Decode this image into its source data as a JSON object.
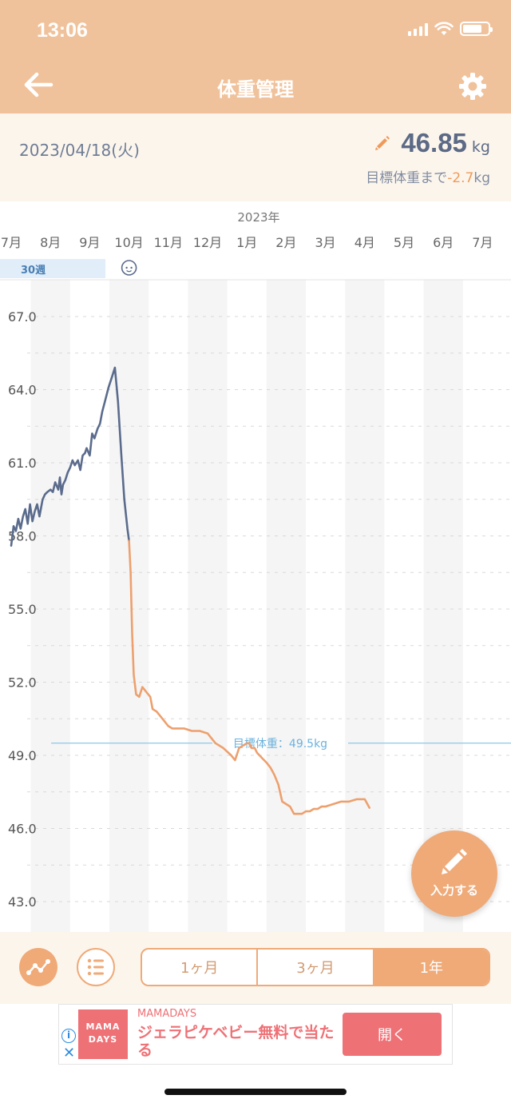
{
  "status_bar": {
    "time": "13:06"
  },
  "header": {
    "title": "体重管理"
  },
  "summary": {
    "date": "2023/04/18(火)",
    "weight": "46.85",
    "weight_unit": "kg",
    "goal_prefix": "目標体重まで",
    "goal_diff": "-2.7",
    "goal_unit": "kg"
  },
  "chart_data": {
    "type": "line",
    "year_label": "2023年",
    "months": [
      "7月",
      "8月",
      "9月",
      "10月",
      "11月",
      "12月",
      "1月",
      "2月",
      "3月",
      "4月",
      "5月",
      "6月",
      "7月"
    ],
    "pregnancy_week_label": "30週",
    "y_ticks": [
      "67.0",
      "64.0",
      "61.0",
      "58.0",
      "55.0",
      "52.0",
      "49.0",
      "46.0",
      "43.0"
    ],
    "ylim": [
      42,
      68
    ],
    "target_line": {
      "label": "目標体重：49.5kg",
      "value": 49.5
    },
    "x_unit": "month index (0 = Jul 2022)",
    "series": [
      {
        "phase": "pregnancy",
        "color": "#5a6b8c",
        "x": [
          0.0,
          0.06,
          0.12,
          0.18,
          0.24,
          0.3,
          0.36,
          0.42,
          0.48,
          0.54,
          0.6,
          0.66,
          0.72,
          0.8,
          0.86,
          0.92,
          1.0,
          1.06,
          1.12,
          1.2,
          1.24,
          1.28,
          1.32,
          1.38,
          1.44,
          1.5,
          1.56,
          1.62,
          1.7,
          1.76,
          1.82,
          1.88,
          1.92,
          2.0,
          2.06,
          2.12,
          2.2,
          2.26,
          2.32,
          2.4,
          2.48,
          2.56,
          2.64,
          2.72,
          2.8,
          2.88,
          2.96,
          3.0
        ],
        "y": [
          57.6,
          58.4,
          58.2,
          58.7,
          58.3,
          58.8,
          59.1,
          58.5,
          59.3,
          58.6,
          59.0,
          59.3,
          58.8,
          59.5,
          59.7,
          59.8,
          59.9,
          59.8,
          60.2,
          59.9,
          60.4,
          59.7,
          60.1,
          60.3,
          60.6,
          60.8,
          61.1,
          60.9,
          61.1,
          60.7,
          61.3,
          61.4,
          61.6,
          61.3,
          62.2,
          62.0,
          62.4,
          62.6,
          63.1,
          63.6,
          64.1,
          64.5,
          64.9,
          63.5,
          61.4,
          59.5,
          58.3,
          57.8
        ]
      },
      {
        "phase": "postpartum",
        "color": "#eda06e",
        "x": [
          3.0,
          3.04,
          3.08,
          3.12,
          3.18,
          3.26,
          3.34,
          3.44,
          3.54,
          3.6,
          3.7,
          3.8,
          3.9,
          4.0,
          4.1,
          4.2,
          4.3,
          4.4,
          4.6,
          4.8,
          5.0,
          5.2,
          5.4,
          5.6,
          5.7,
          5.8,
          6.0,
          6.06,
          6.12,
          6.2,
          6.26,
          6.38,
          6.5,
          6.6,
          6.7,
          6.8,
          6.9,
          7.0,
          7.1,
          7.2,
          7.3,
          7.4,
          7.5,
          7.6,
          7.7,
          7.8,
          7.9,
          8.0,
          8.2,
          8.4,
          8.6,
          8.8,
          9.0,
          9.12
        ],
        "y": [
          57.8,
          56.5,
          54.0,
          52.3,
          51.5,
          51.4,
          51.8,
          51.6,
          51.4,
          50.9,
          50.8,
          50.6,
          50.4,
          50.2,
          50.1,
          50.1,
          50.1,
          50.1,
          50.0,
          50.0,
          49.9,
          49.5,
          49.3,
          49.0,
          48.8,
          49.3,
          49.5,
          49.5,
          49.3,
          49.3,
          49.1,
          48.9,
          48.7,
          48.5,
          48.2,
          47.8,
          47.1,
          47.0,
          46.9,
          46.6,
          46.6,
          46.6,
          46.7,
          46.7,
          46.8,
          46.8,
          46.9,
          46.9,
          47.0,
          47.1,
          47.1,
          47.2,
          47.2,
          46.85
        ]
      }
    ]
  },
  "fab": {
    "label": "入力する"
  },
  "range_tabs": [
    "1ヶ月",
    "3ヶ月",
    "1年"
  ],
  "range_active_index": 2,
  "ad": {
    "logo_line1": "MAMA",
    "logo_line2": "DAYS",
    "brand": "MAMADAYS",
    "text": "ジェラピケベビー無料で当たる",
    "button": "開く"
  }
}
